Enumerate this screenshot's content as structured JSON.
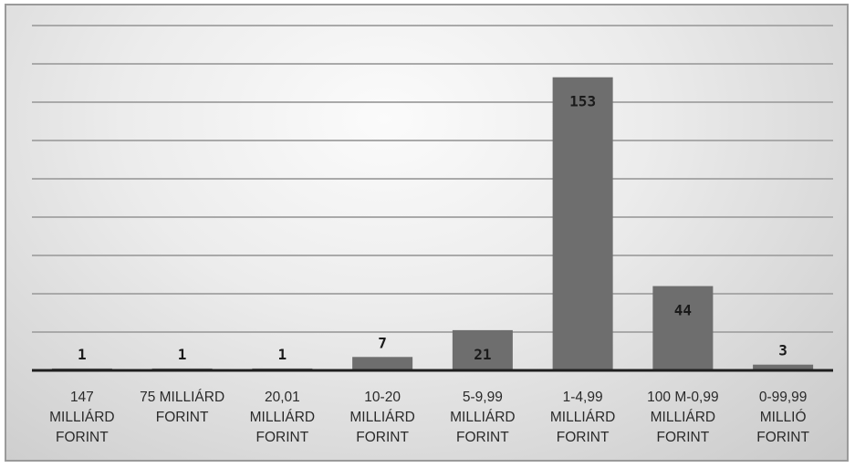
{
  "chart_data": {
    "type": "bar",
    "categories": [
      "147 MILLIÁRD FORINT",
      "75 MILLIÁRD FORINT",
      "20,01 MILLIÁRD FORINT",
      "10-20 MILLIÁRD FORINT",
      "5-9,99 MILLIÁRD FORINT",
      "1-4,99 MILLIÁRD FORINT",
      "100 M-0,99 MILLIÁRD FORINT",
      "0-99,99 MILLIÓ FORINT"
    ],
    "category_lines": [
      [
        "147",
        "MILLIÁRD",
        "FORINT"
      ],
      [
        "75 MILLIÁRD",
        "FORINT"
      ],
      [
        "20,01",
        "MILLIÁRD",
        "FORINT"
      ],
      [
        "10-20",
        "MILLIÁRD",
        "FORINT"
      ],
      [
        "5-9,99",
        "MILLIÁRD",
        "FORINT"
      ],
      [
        "1-4,99",
        "MILLIÁRD",
        "FORINT"
      ],
      [
        "100 M-0,99",
        "MILLIÁRD",
        "FORINT"
      ],
      [
        "0-99,99",
        "MILLIÓ",
        "FORINT"
      ]
    ],
    "values": [
      1,
      1,
      1,
      7,
      21,
      153,
      44,
      3
    ],
    "data_labels": [
      "1",
      "1",
      "1",
      "7",
      "21",
      "153",
      "44",
      "3"
    ],
    "title": "",
    "xlabel": "",
    "ylabel": "",
    "ylim": [
      0,
      160
    ],
    "grid": true,
    "legend": "none"
  },
  "colors": {
    "bar": "#6e6e6e",
    "axis": "#1f1f1f",
    "grid": "#a9a9a9"
  }
}
